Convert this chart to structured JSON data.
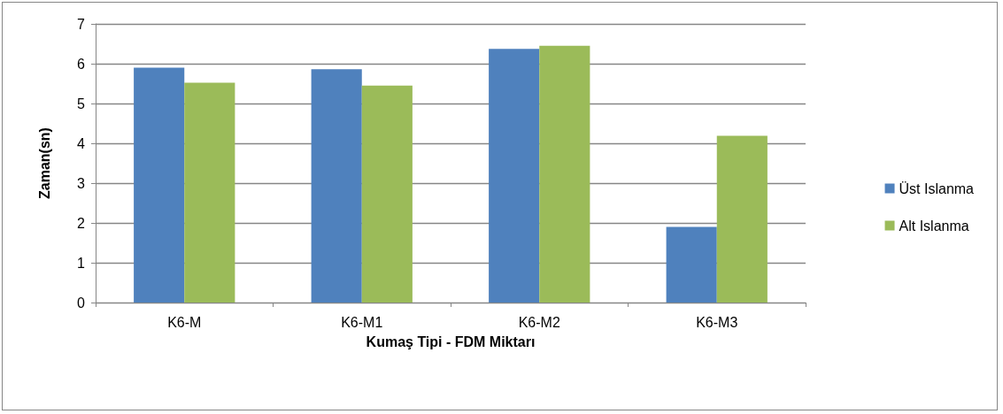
{
  "chart_data": {
    "type": "bar",
    "xlabel": "Kumaş Tipi - FDM Miktarı",
    "ylabel": "Zaman(sn)",
    "categories": [
      "K6-M",
      "K6-M1",
      "K6-M2",
      "K6-M3"
    ],
    "series": [
      {
        "name": "Üst Islanma",
        "color": "#4f81bd",
        "values": [
          5.9,
          5.86,
          6.37,
          1.9
        ]
      },
      {
        "name": "Alt Islanma",
        "color": "#9bbb59",
        "values": [
          5.52,
          5.45,
          6.45,
          4.19
        ]
      }
    ],
    "ylim": [
      0,
      7
    ],
    "yticks": [
      0,
      1,
      2,
      3,
      4,
      5,
      6,
      7
    ],
    "grid": "y",
    "legend": "right"
  }
}
